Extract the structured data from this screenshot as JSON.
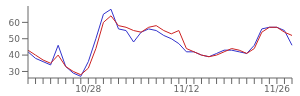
{
  "chart_data": {
    "type": "line",
    "categories": [
      null,
      null,
      null,
      null,
      null,
      null,
      null,
      null,
      "10/28",
      null,
      null,
      null,
      null,
      null,
      null,
      null,
      null,
      null,
      null,
      null,
      null,
      "11/12",
      null,
      null,
      null,
      null,
      null,
      null,
      null,
      null,
      null,
      null,
      null,
      "11/26",
      null,
      null
    ],
    "series": [
      {
        "color": "#3333cc",
        "values": [
          42,
          38,
          36,
          34,
          46,
          33,
          29,
          27,
          36,
          50,
          65,
          68,
          56,
          55,
          48,
          54,
          56,
          55,
          52,
          50,
          47,
          42,
          42,
          40,
          39,
          41,
          43,
          43,
          42,
          41,
          46,
          56,
          57,
          57,
          55,
          46
        ]
      },
      {
        "color": "#cc2222",
        "values": [
          43,
          40,
          37,
          35,
          40,
          33,
          30,
          28,
          32,
          44,
          60,
          64,
          58,
          57,
          55,
          54,
          57,
          58,
          55,
          53,
          55,
          44,
          42,
          40,
          39,
          40,
          42,
          44,
          43,
          41,
          44,
          54,
          57,
          57,
          54,
          52
        ]
      }
    ],
    "ylim": [
      26,
      70
    ],
    "yticks": [
      30,
      40,
      50,
      60
    ],
    "grid": false
  }
}
